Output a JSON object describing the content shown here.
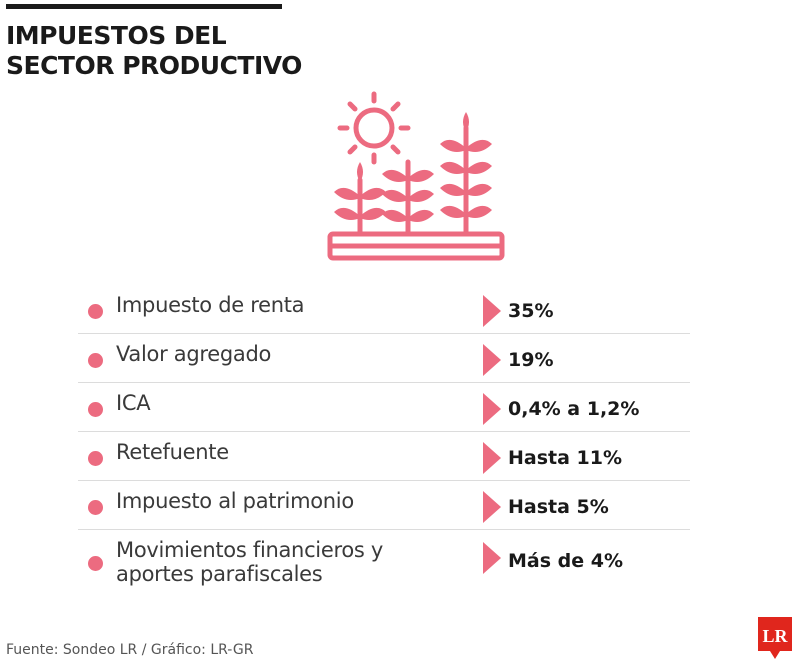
{
  "header": {
    "title_line1": "IMPUESTOS DEL",
    "title_line2": "SECTOR PRODUCTIVO"
  },
  "illustration": {
    "icon": "sun-and-crops-icon",
    "color": "#ec6b80"
  },
  "taxes": [
    {
      "label": "Impuesto de renta",
      "value": "35%"
    },
    {
      "label": "Valor agregado",
      "value": "19%"
    },
    {
      "label": "ICA",
      "value": "0,4% a 1,2%"
    },
    {
      "label": "Retefuente",
      "value": "Hasta 11%"
    },
    {
      "label": "Impuesto al patrimonio",
      "value": "Hasta 5%"
    },
    {
      "label": "Movimientos financieros y aportes parafiscales",
      "value": "Más de 4%"
    }
  ],
  "footer": {
    "source": "Fuente: Sondeo LR / Gráfico: LR-GR",
    "logo_text": "LR",
    "logo_color": "#e0261d"
  },
  "colors": {
    "accent": "#ec6b80",
    "text": "#1a1a1a"
  }
}
